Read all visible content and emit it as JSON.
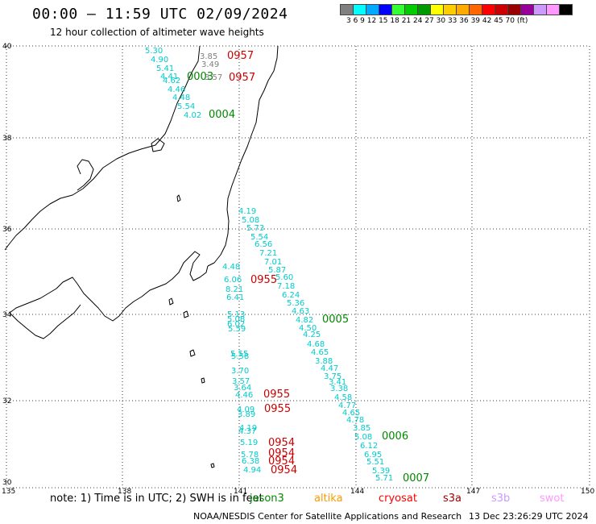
{
  "header": {
    "title": "00:00 – 11:59 UTC 02/09/2024",
    "subtitle": "12 hour collection of altimeter wave heights"
  },
  "legend": {
    "colors": [
      "#808080",
      "#00ffff",
      "#00aaff",
      "#0000ff",
      "#33ff33",
      "#00cc00",
      "#009900",
      "#ffff00",
      "#ffcc00",
      "#ffaa00",
      "#ff6600",
      "#ff0000",
      "#cc0000",
      "#990000",
      "#990099",
      "#cc99ff",
      "#ff99ff",
      "#000000"
    ],
    "labels": "3  6  9  12  15  18  21  24  27  30  33  36  39  42  45  70 (ft)"
  },
  "axes": {
    "lat_labels": [
      "40",
      "38",
      "36",
      "34",
      "32",
      "30"
    ],
    "lon_labels": [
      "135",
      "138",
      "141",
      "144",
      "147",
      "150"
    ]
  },
  "passes": [
    {
      "time": "0957",
      "color": "#cc0000"
    },
    {
      "time": "0957",
      "color": "#cc0000"
    },
    {
      "time": "0003",
      "color": "#008800"
    },
    {
      "time": "0004",
      "color": "#008800"
    },
    {
      "time": "0955",
      "color": "#cc0000"
    },
    {
      "time": "0005",
      "color": "#008800"
    },
    {
      "time": "0955",
      "color": "#cc0000"
    },
    {
      "time": "0955",
      "color": "#cc0000"
    },
    {
      "time": "0006",
      "color": "#008800"
    },
    {
      "time": "0954",
      "color": "#cc0000"
    },
    {
      "time": "0954",
      "color": "#cc0000"
    },
    {
      "time": "0954",
      "color": "#cc0000"
    },
    {
      "time": "0954",
      "color": "#cc0000"
    },
    {
      "time": "0007",
      "color": "#008800"
    }
  ],
  "track_a_values": [
    "5.30",
    "4.90",
    "5.41",
    "4.41",
    "4.62",
    "4.46",
    "4.48",
    "5.54",
    "4.02"
  ],
  "track_b_values": [
    "3.85",
    "3.49",
    "3.57"
  ],
  "track_c_values": [
    "4.19",
    "5.08",
    "5.73",
    "5.54",
    "6.56",
    "7.21",
    "7.01",
    "5.87",
    "5.60",
    "7.18",
    "6.24",
    "5.36",
    "4.63",
    "4.82",
    "4.50",
    "4.25",
    "4.68",
    "4.65",
    "3.88",
    "4.47",
    "3.75",
    "3.41",
    "3.38",
    "4.58",
    "4.77",
    "4.65",
    "4.78",
    "3.85",
    "5.08",
    "6.12",
    "6.95",
    "5.51",
    "5.39",
    "5.71"
  ],
  "track_d_values": [
    "4.48",
    "6.06",
    "8.21",
    "6.41",
    "5.13",
    "5.08",
    "6.02",
    "5.59",
    "5.55",
    "5.58",
    "3.70",
    "3.57",
    "3.64",
    "4.46",
    "4.09",
    "3.89",
    "4.19",
    "4.37",
    "5.19",
    "5.78",
    "6.38",
    "4.94"
  ],
  "footer": {
    "note": "note: 1) Time is in UTC; 2) SWH is in feet",
    "missions": [
      {
        "name": "jason3",
        "color": "#008800"
      },
      {
        "name": "altika",
        "color": "#ff9900"
      },
      {
        "name": "cryosat",
        "color": "#ff0000"
      },
      {
        "name": "s3a",
        "color": "#990000"
      },
      {
        "name": "s3b",
        "color": "#cc99ff"
      },
      {
        "name": "swot",
        "color": "#ff99ff"
      }
    ],
    "credit": "NOAA/NESDIS Center for Satellite Applications and Research",
    "timestamp": "13 Dec 23:26:29 UTC 2024"
  }
}
